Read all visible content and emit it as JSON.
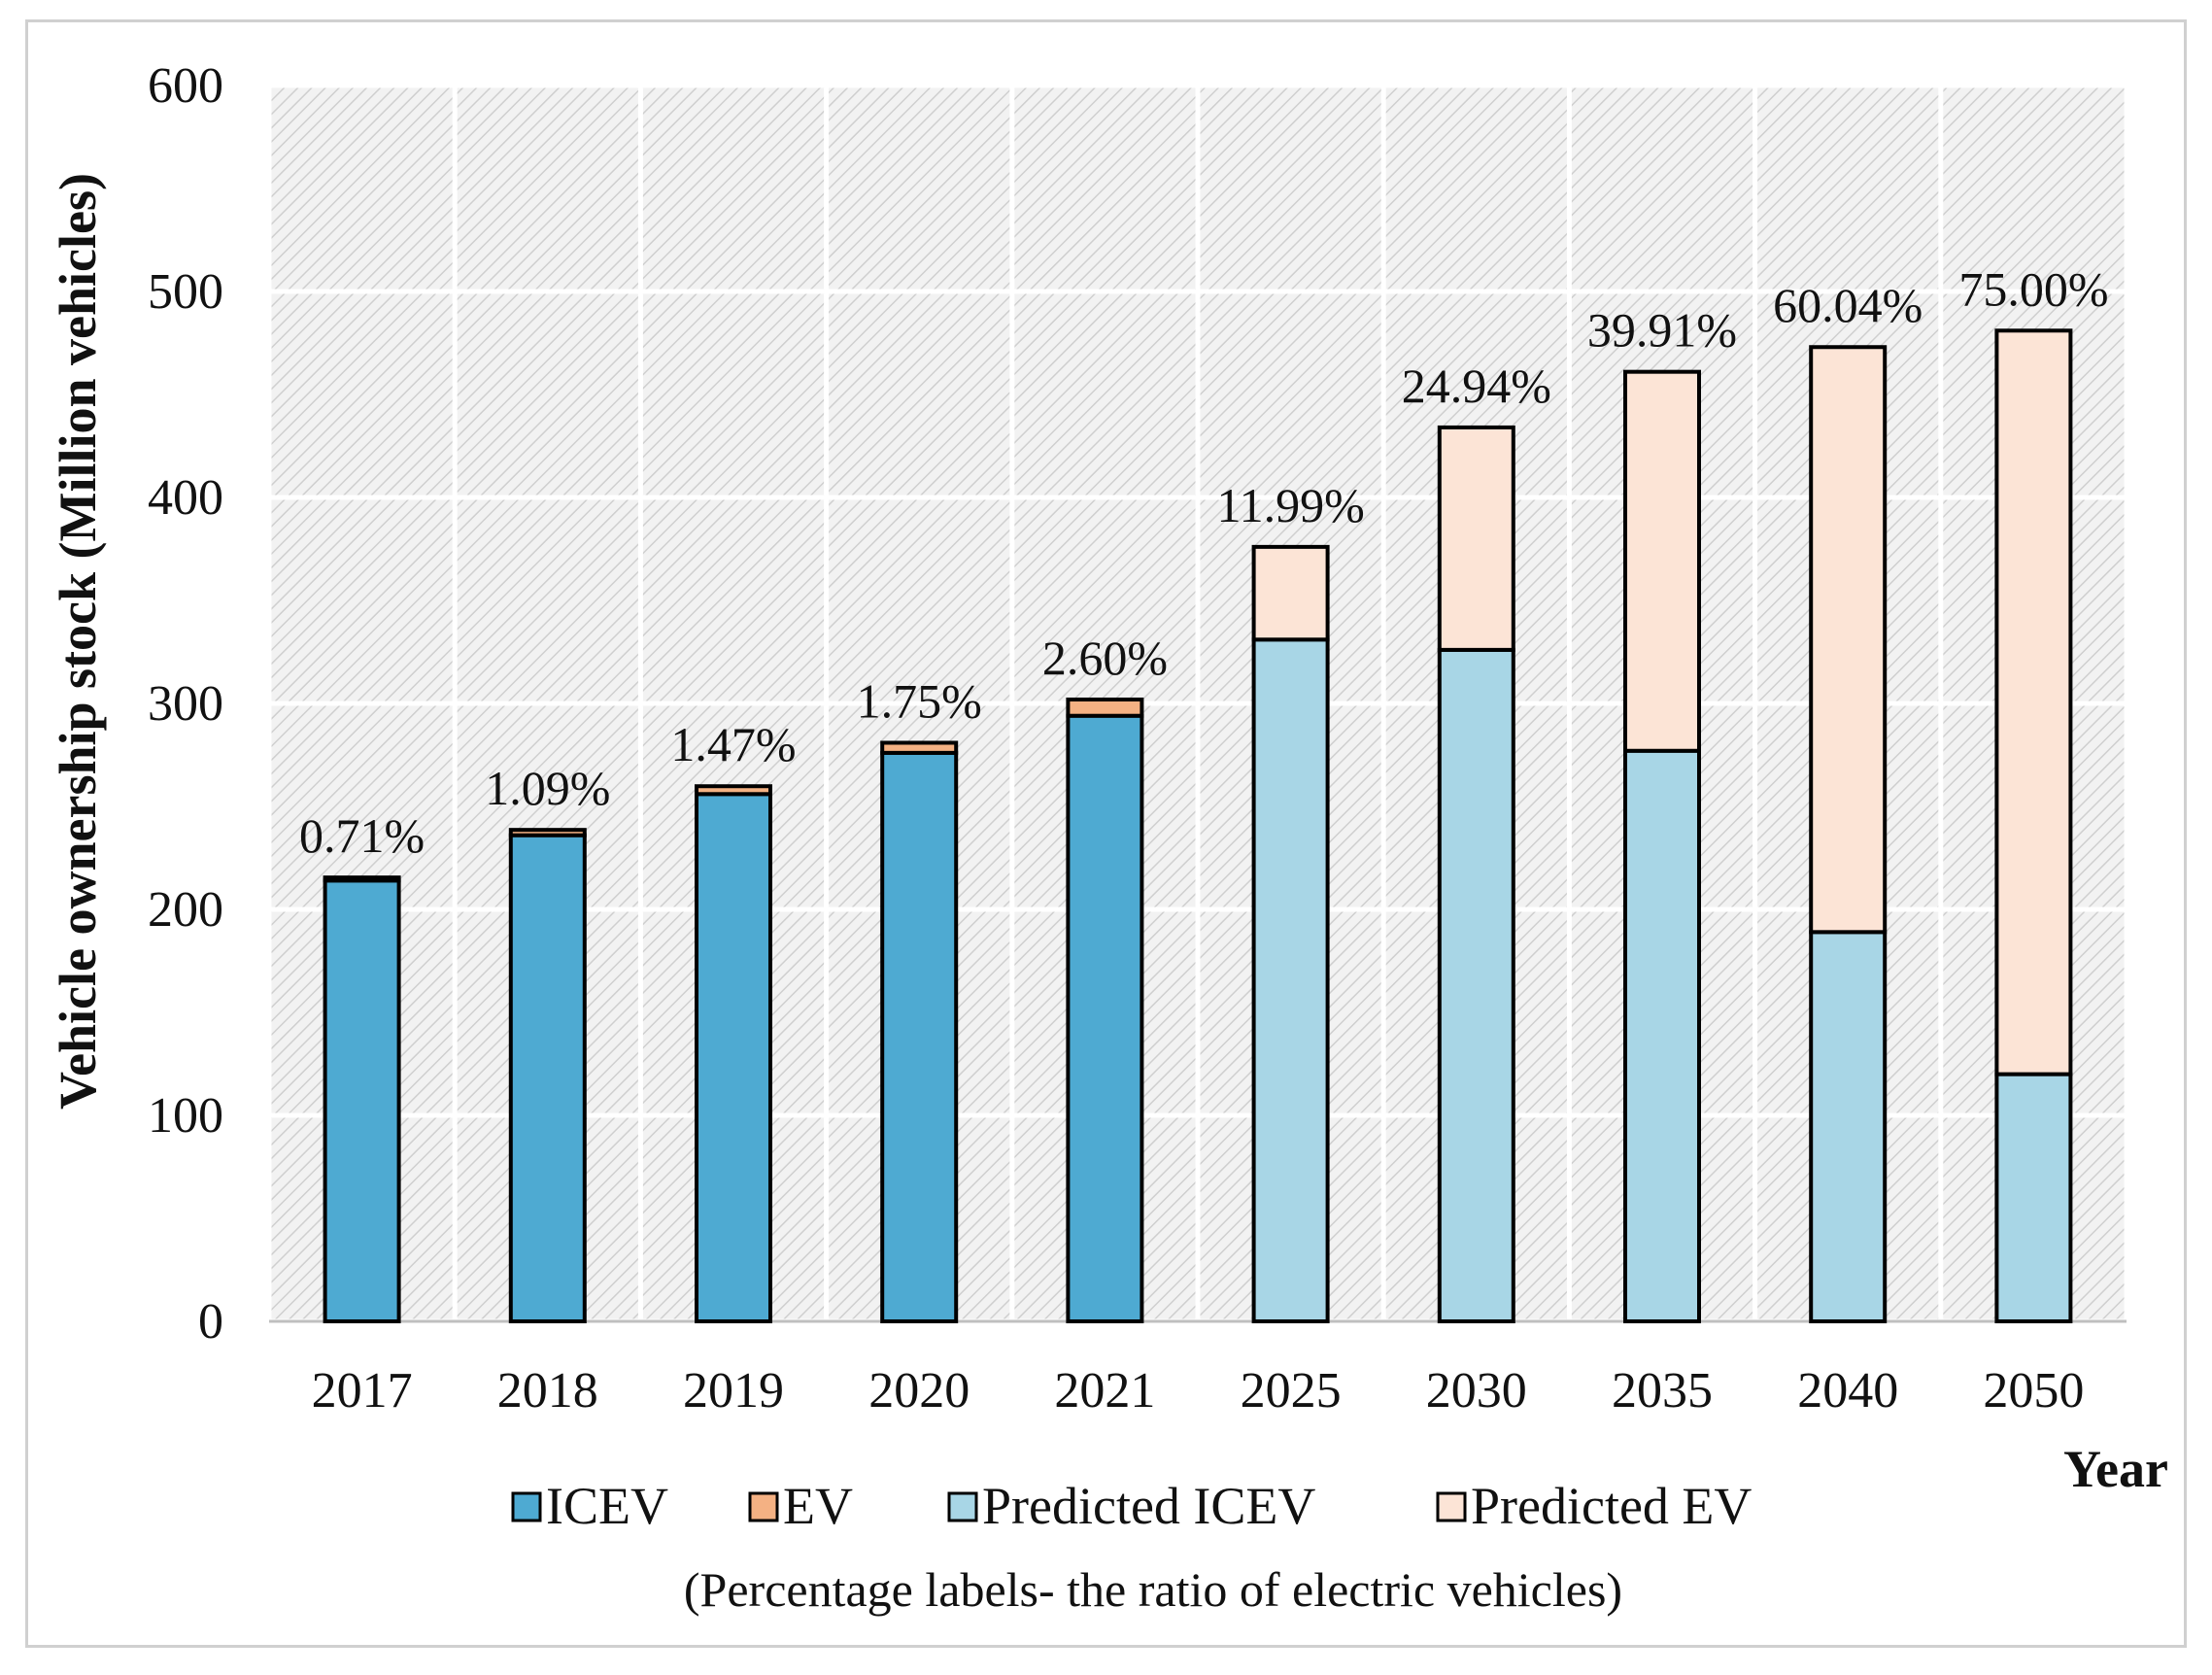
{
  "chart_data": {
    "type": "bar",
    "stacked": true,
    "categories": [
      "2017",
      "2018",
      "2019",
      "2020",
      "2021",
      "2025",
      "2030",
      "2035",
      "2040",
      "2050"
    ],
    "series": [
      {
        "name": "ICEV",
        "color": "#4eaad2",
        "values": [
          214,
          236,
          256,
          276,
          294,
          0,
          0,
          0,
          0,
          0
        ]
      },
      {
        "name": "EV",
        "color": "#f4b183",
        "values": [
          1.5,
          2.6,
          3.8,
          4.9,
          7.9,
          0,
          0,
          0,
          0,
          0
        ]
      },
      {
        "name": "Predicted ICEV",
        "color": "#a8d6e6",
        "values": [
          0,
          0,
          0,
          0,
          0,
          331,
          326,
          277,
          189,
          120
        ]
      },
      {
        "name": "Predicted EV",
        "color": "#fce4d6",
        "values": [
          0,
          0,
          0,
          0,
          0,
          45,
          108,
          184,
          284,
          361
        ]
      }
    ],
    "data_labels": [
      "0.71%",
      "1.09%",
      "1.47%",
      "1.75%",
      "2.60%",
      "11.99%",
      "24.94%",
      "39.91%",
      "60.04%",
      "75.00%"
    ],
    "yticks": [
      "0",
      "100",
      "200",
      "300",
      "400",
      "500",
      "600"
    ],
    "ylim": [
      0,
      600
    ],
    "ylabel": "Vehicle  ownership stock (Million vehicles)",
    "xlabel": "Year",
    "legend_position": "bottom",
    "note": "(Percentage labels- the ratio of electric vehicles)",
    "grid": true
  }
}
